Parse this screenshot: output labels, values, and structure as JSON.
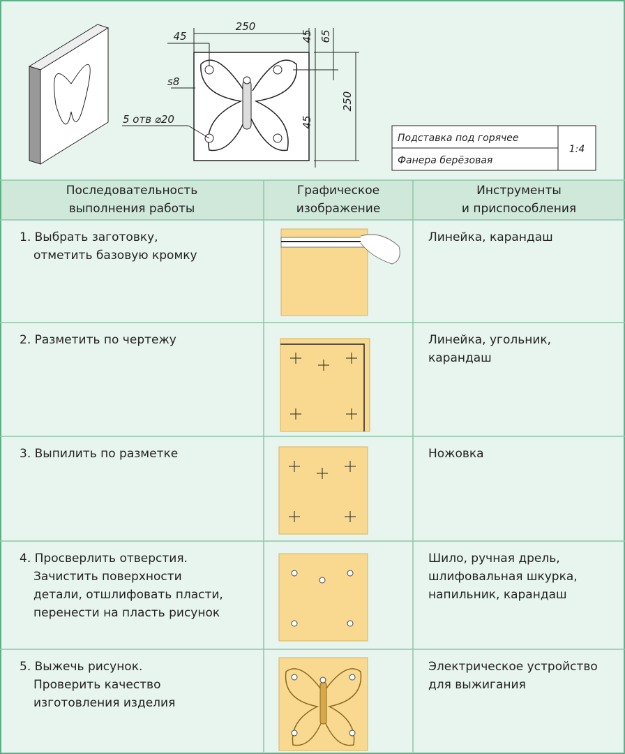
{
  "drawing": {
    "dimensions": {
      "width": "250",
      "left_offset": "45",
      "right_offset": "45",
      "top_offset": "65",
      "height": "250",
      "bottom_offset": "45"
    },
    "thickness": "s8",
    "holes": "5 отв ⌀20",
    "title_block": {
      "name": "Подставка под горячее",
      "material": "Фанера берёзовая",
      "scale": "1:4"
    }
  },
  "table": {
    "headers": [
      [
        "Последовательность",
        "выполнения работы"
      ],
      [
        "Графическое",
        "изображение"
      ],
      [
        "Инструменты",
        "и приспособления"
      ]
    ],
    "rows": [
      {
        "step": [
          "1. Выбрать заготовку,",
          "отметить базовую кромку"
        ],
        "tools": [
          "Линейка, карандаш"
        ]
      },
      {
        "step": [
          "2. Разметить по чертежу"
        ],
        "tools": [
          "Линейка, угольник,",
          "карандаш"
        ]
      },
      {
        "step": [
          "3. Выпилить по разметке"
        ],
        "tools": [
          "Ножовка"
        ]
      },
      {
        "step": [
          "4. Просверлить отверстия.",
          "Зачистить поверхности",
          "детали, отшлифовать пласти,",
          "перенести на пласть рисунок"
        ],
        "tools": [
          "Шило, ручная дрель,",
          "шлифовальная шкурка,",
          "напильник, карандаш"
        ]
      },
      {
        "step": [
          "5. Выжечь рисунок.",
          "Проверить качество",
          "изготовления изделия"
        ],
        "tools": [
          "Электрическое устройство",
          "для выжигания"
        ]
      }
    ]
  }
}
